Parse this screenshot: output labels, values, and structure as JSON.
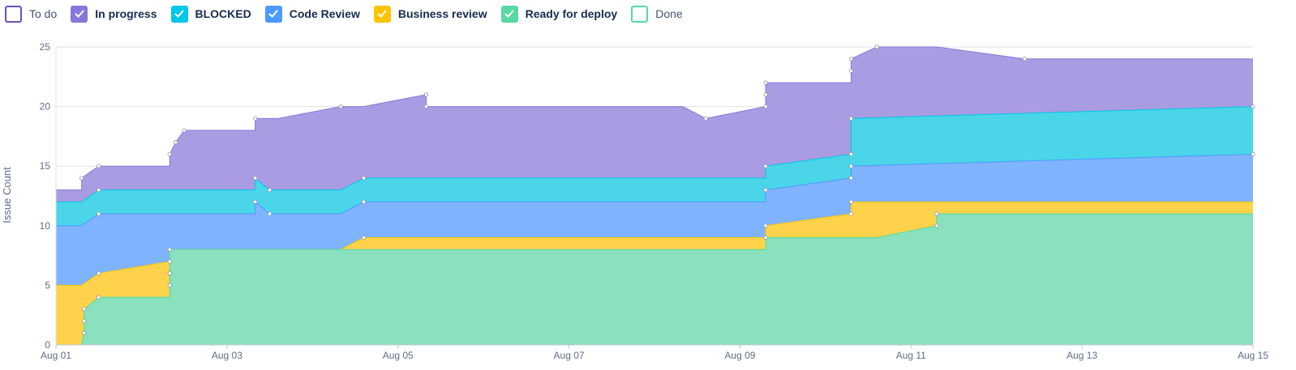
{
  "legend": [
    {
      "key": "todo",
      "label": "To do",
      "color": "#6554c0",
      "checked": false,
      "bold": false
    },
    {
      "key": "inprogress",
      "label": "In progress",
      "color": "#8777d9",
      "checked": true,
      "bold": true
    },
    {
      "key": "blocked",
      "label": "BLOCKED",
      "color": "#00c7e6",
      "checked": true,
      "bold": true
    },
    {
      "key": "codereview",
      "label": "Code Review",
      "color": "#4c9aff",
      "checked": true,
      "bold": true
    },
    {
      "key": "businessreview",
      "label": "Business review",
      "color": "#ffc400",
      "checked": true,
      "bold": true
    },
    {
      "key": "readyfordeploy",
      "label": "Ready for deploy",
      "color": "#57d9a3",
      "checked": true,
      "bold": true
    },
    {
      "key": "done",
      "label": "Done",
      "color": "#57d9a3",
      "checked": false,
      "bold": false
    }
  ],
  "chart_data": {
    "type": "area",
    "stacked": true,
    "title": "",
    "xlabel": "",
    "ylabel": "Issue Count",
    "xlim": [
      0,
      14
    ],
    "ylim": [
      0,
      25
    ],
    "yticks": [
      0,
      5,
      10,
      15,
      20,
      25
    ],
    "xticks": [
      {
        "value": 0,
        "label": "Aug 01"
      },
      {
        "value": 2,
        "label": "Aug 03"
      },
      {
        "value": 4,
        "label": "Aug 05"
      },
      {
        "value": 6,
        "label": "Aug 07"
      },
      {
        "value": 8,
        "label": "Aug 09"
      },
      {
        "value": 10,
        "label": "Aug 11"
      },
      {
        "value": 12,
        "label": "Aug 13"
      },
      {
        "value": 14,
        "label": "Aug 15"
      }
    ],
    "grid": true,
    "legend_position": "top-left",
    "series": [
      {
        "name": "Ready for deploy",
        "color": "#57d9a3",
        "fill": "#89e1bd",
        "points": [
          [
            0,
            0
          ],
          [
            0.3,
            0
          ],
          [
            0.33,
            1
          ],
          [
            0.33,
            2
          ],
          [
            0.33,
            3
          ],
          [
            0.5,
            4
          ],
          [
            1.33,
            4
          ],
          [
            1.33,
            5
          ],
          [
            1.33,
            6
          ],
          [
            1.33,
            7
          ],
          [
            1.33,
            8
          ],
          [
            8.3,
            8
          ],
          [
            8.3,
            9
          ],
          [
            9.6,
            9
          ],
          [
            10.3,
            10
          ],
          [
            10.3,
            11
          ],
          [
            14,
            11
          ]
        ]
      },
      {
        "name": "Business review",
        "color": "#ffc400",
        "fill": "#fed34b",
        "points": [
          [
            0,
            5
          ],
          [
            0.3,
            5
          ],
          [
            0.5,
            6
          ],
          [
            1.33,
            7
          ],
          [
            1.33,
            8
          ],
          [
            3.33,
            8
          ],
          [
            3.6,
            9
          ],
          [
            8.3,
            9
          ],
          [
            8.3,
            10
          ],
          [
            9.3,
            11
          ],
          [
            9.3,
            12
          ],
          [
            14,
            12
          ]
        ]
      },
      {
        "name": "Code Review",
        "color": "#4c9aff",
        "fill": "#7fb3fe",
        "points": [
          [
            0,
            10
          ],
          [
            0.3,
            10
          ],
          [
            0.5,
            11
          ],
          [
            2.33,
            11
          ],
          [
            2.33,
            12
          ],
          [
            2.5,
            11
          ],
          [
            3.33,
            11
          ],
          [
            3.6,
            12
          ],
          [
            8.3,
            12
          ],
          [
            8.3,
            13
          ],
          [
            9.3,
            14
          ],
          [
            9.3,
            15
          ],
          [
            14,
            16
          ]
        ]
      },
      {
        "name": "BLOCKED",
        "color": "#00c7e6",
        "fill": "#4ad5e9",
        "points": [
          [
            0,
            12
          ],
          [
            0.3,
            12
          ],
          [
            0.5,
            13
          ],
          [
            2.33,
            13
          ],
          [
            2.33,
            14
          ],
          [
            2.5,
            13
          ],
          [
            3.33,
            13
          ],
          [
            3.6,
            14
          ],
          [
            8.3,
            14
          ],
          [
            8.3,
            15
          ],
          [
            9.3,
            16
          ],
          [
            9.3,
            19
          ],
          [
            14,
            20
          ]
        ]
      },
      {
        "name": "In progress",
        "color": "#8777d9",
        "fill": "#a99ce3",
        "points": [
          [
            0,
            13
          ],
          [
            0.3,
            13
          ],
          [
            0.3,
            14
          ],
          [
            0.5,
            15
          ],
          [
            1.33,
            15
          ],
          [
            1.33,
            16
          ],
          [
            1.4,
            17
          ],
          [
            1.5,
            18
          ],
          [
            2.33,
            18
          ],
          [
            2.33,
            19
          ],
          [
            2.6,
            19
          ],
          [
            3.33,
            20
          ],
          [
            3.6,
            20
          ],
          [
            4.33,
            21
          ],
          [
            4.33,
            20
          ],
          [
            7.33,
            20
          ],
          [
            7.6,
            19
          ],
          [
            8.3,
            20
          ],
          [
            8.3,
            21
          ],
          [
            8.3,
            22
          ],
          [
            9.3,
            22
          ],
          [
            9.3,
            23
          ],
          [
            9.3,
            24
          ],
          [
            9.6,
            25
          ],
          [
            10.3,
            25
          ],
          [
            11.33,
            24
          ],
          [
            14,
            24
          ]
        ]
      }
    ]
  }
}
